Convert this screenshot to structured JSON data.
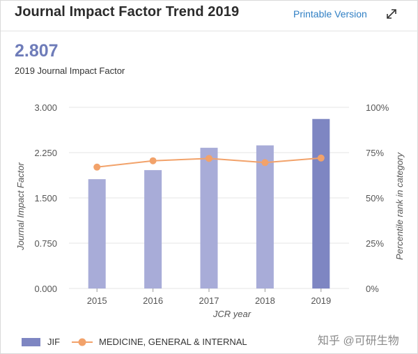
{
  "header": {
    "title": "Journal Impact Factor Trend 2019",
    "printable_label": "Printable Version"
  },
  "summary": {
    "value": "2.807",
    "label": "2019 Journal Impact Factor"
  },
  "colors": {
    "bar": "#a8acd8",
    "bar_highlight": "#7e86c2",
    "line": "#f2a26a",
    "grid": "#e4e4e4",
    "axis_text": "#555555"
  },
  "chart_data": {
    "type": "bar",
    "categories": [
      "2015",
      "2016",
      "2017",
      "2018",
      "2019"
    ],
    "series": [
      {
        "name": "JIF",
        "axis": "left",
        "values": [
          1.81,
          1.96,
          2.33,
          2.37,
          2.807
        ]
      },
      {
        "name": "MEDICINE, GENERAL & INTERNAL",
        "axis": "right",
        "type": "line",
        "values": [
          67,
          70.5,
          71.8,
          69.5,
          72
        ]
      }
    ],
    "xlabel": "JCR year",
    "ylabel": "Journal Impact Factor",
    "y2label": "Percentile rank in category",
    "ylim": [
      0,
      3
    ],
    "y2lim": [
      0,
      100
    ],
    "yticks": [
      "0.000",
      "0.750",
      "1.500",
      "2.250",
      "3.000"
    ],
    "y2ticks": [
      "0%",
      "25%",
      "50%",
      "75%",
      "100%"
    ],
    "legend": [
      "JIF",
      "MEDICINE, GENERAL & INTERNAL"
    ]
  },
  "watermark": "知乎 @可研生物"
}
